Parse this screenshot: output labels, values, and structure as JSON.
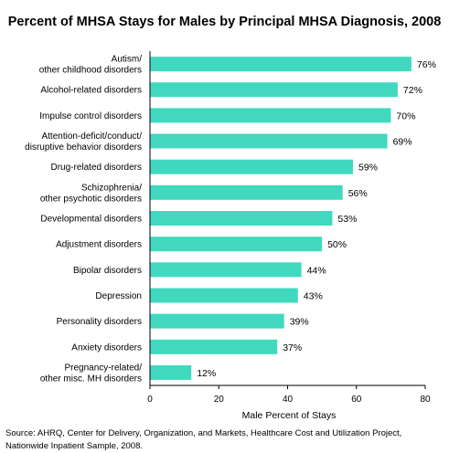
{
  "chart_data": {
    "type": "bar",
    "orientation": "horizontal",
    "title": "Percent of MHSA Stays for Males by Principal MHSA Diagnosis, 2008",
    "xlabel": "Male Percent of Stays",
    "ylabel": "",
    "xlim": [
      0,
      80
    ],
    "x_ticks": [
      0,
      20,
      40,
      60,
      80
    ],
    "grid": false,
    "bar_color": "#40d9c0",
    "categories": [
      [
        "Autism/",
        "other childhood disorders"
      ],
      [
        "Alcohol-related disorders"
      ],
      [
        "Impulse control disorders"
      ],
      [
        "Attention-deficit/conduct/",
        "disruptive behavior disorders"
      ],
      [
        "Drug-related disorders"
      ],
      [
        "Schizophrenia/",
        "other psychotic disorders"
      ],
      [
        "Developmental disorders"
      ],
      [
        "Adjustment disorders"
      ],
      [
        "Bipolar disorders"
      ],
      [
        "Depression"
      ],
      [
        "Personality disorders"
      ],
      [
        "Anxiety disorders"
      ],
      [
        "Pregnancy-related/",
        "other misc. MH disorders"
      ]
    ],
    "values": [
      76,
      72,
      70,
      69,
      59,
      56,
      53,
      50,
      44,
      43,
      39,
      37,
      12
    ],
    "value_labels": [
      "76%",
      "72%",
      "70%",
      "69%",
      "59%",
      "56%",
      "53%",
      "50%",
      "44%",
      "43%",
      "39%",
      "37%",
      "12%"
    ]
  },
  "source": "Source: AHRQ, Center for Delivery, Organization, and Markets, Healthcare Cost and Utilization Project, Nationwide Inpatient Sample, 2008."
}
